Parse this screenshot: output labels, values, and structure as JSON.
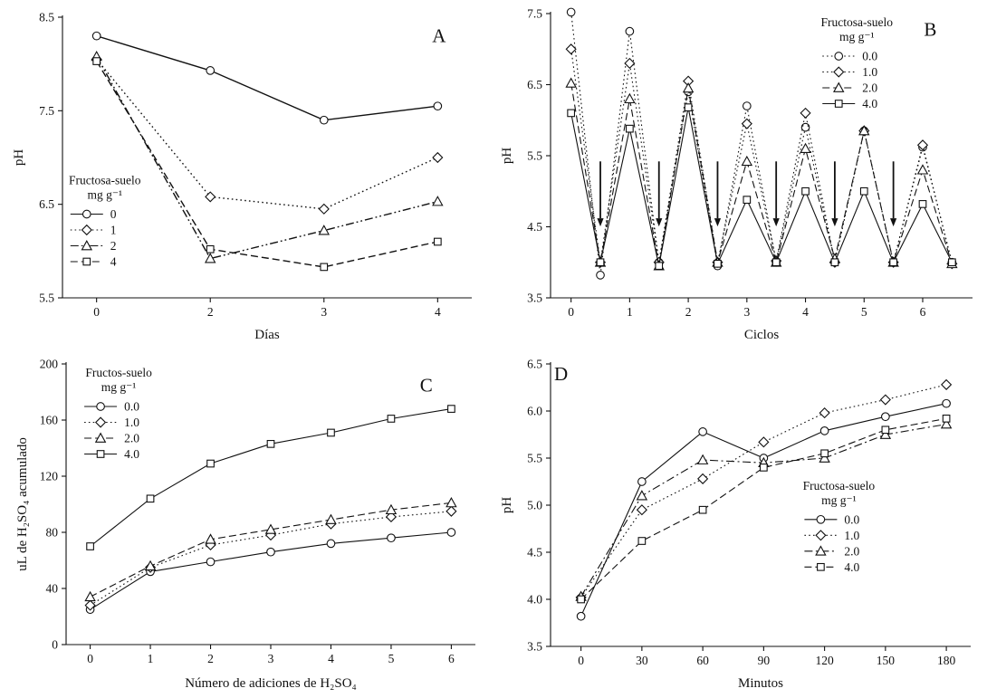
{
  "figure": {
    "background": "#ffffff",
    "description": "Four-panel scientific line figure (A, B, C, D) showing soil pH dynamics and accumulated H2SO4 under fructose-soil treatments"
  },
  "chart_data": [
    {
      "id": "A",
      "type": "line",
      "letter": "A",
      "xlabel": "Días",
      "ylabel": "pH",
      "xlim": [
        -0.3,
        3.3
      ],
      "ylim": [
        5.5,
        8.5
      ],
      "x_ticks": [
        0,
        1,
        2,
        3
      ],
      "x_tick_labels": [
        "0",
        "2",
        "3",
        "4"
      ],
      "y_ticks": [
        5.5,
        6.5,
        7.5,
        8.5
      ],
      "y_tick_labels": [
        "5.5",
        "6.5",
        "7.5",
        "8.5"
      ],
      "x": [
        0,
        1,
        2,
        3
      ],
      "legend": {
        "title": "Fructosa-suelo",
        "subtitle": "mg g⁻¹",
        "pos": [
          0.015,
          0.55
        ]
      },
      "letter_pos": [
        0.92,
        0.03
      ],
      "series": [
        {
          "name": "0",
          "marker": "circle",
          "dash": "solid",
          "y": [
            8.3,
            7.93,
            7.4,
            7.55
          ]
        },
        {
          "name": "1",
          "marker": "diamond",
          "dash": "dotted",
          "y": [
            8.05,
            6.58,
            6.45,
            7.0
          ]
        },
        {
          "name": "2",
          "marker": "triangle",
          "dash": "dashdotdot",
          "y": [
            8.08,
            5.92,
            6.22,
            6.53
          ]
        },
        {
          "name": "4",
          "marker": "square",
          "dash": "dashed",
          "y": [
            8.03,
            6.02,
            5.83,
            6.1
          ]
        }
      ]
    },
    {
      "id": "B",
      "type": "line",
      "letter": "B",
      "xlabel": "Ciclos",
      "ylabel": "pH",
      "xlim": [
        -0.35,
        6.85
      ],
      "ylim": [
        3.5,
        7.5
      ],
      "x_ticks": [
        0,
        1,
        2,
        3,
        4,
        5,
        6
      ],
      "x_tick_labels": [
        "0",
        "1",
        "2",
        "3",
        "4",
        "5",
        "6"
      ],
      "y_ticks": [
        3.5,
        4.5,
        5.5,
        6.5,
        7.5
      ],
      "y_tick_labels": [
        "3.5",
        "4.5",
        "5.5",
        "6.5",
        "7.5"
      ],
      "x": [
        0,
        0.5,
        1,
        1.5,
        2,
        2.5,
        3,
        3.5,
        4,
        4.5,
        5,
        5.5,
        6,
        6.5
      ],
      "legend": {
        "title": "Fructosa-suelo",
        "subtitle": "mg g⁻¹",
        "pos": [
          0.64,
          0.0
        ]
      },
      "letter_pos": [
        0.9,
        0.02
      ],
      "arrows": {
        "x": [
          0.5,
          1.5,
          2.5,
          3.5,
          4.5,
          5.5
        ],
        "y_from": 5.42,
        "y_to": 4.62
      },
      "series": [
        {
          "name": "0.0",
          "marker": "circle",
          "dash": "dotted",
          "y": [
            7.52,
            3.82,
            7.25,
            4.0,
            6.4,
            3.95,
            6.2,
            4.0,
            5.9,
            4.0,
            5.85,
            4.0,
            5.62,
            4.0
          ]
        },
        {
          "name": "1.0",
          "marker": "diamond",
          "dash": "dotted",
          "y": [
            7.0,
            4.0,
            6.8,
            4.0,
            6.55,
            4.0,
            5.95,
            4.02,
            6.1,
            4.0,
            5.85,
            4.0,
            5.65,
            3.98
          ]
        },
        {
          "name": "2.0",
          "marker": "triangle",
          "dash": "dashed",
          "y": [
            6.52,
            4.0,
            6.3,
            3.95,
            6.45,
            4.0,
            5.42,
            4.0,
            5.6,
            4.05,
            5.85,
            4.0,
            5.3,
            3.98
          ]
        },
        {
          "name": "4.0",
          "marker": "square",
          "dash": "solid",
          "y": [
            6.1,
            4.0,
            5.88,
            3.95,
            6.18,
            3.98,
            4.88,
            4.0,
            5.0,
            4.0,
            5.0,
            4.0,
            4.82,
            4.0
          ]
        }
      ]
    },
    {
      "id": "C",
      "type": "line",
      "letter": "C",
      "xlabel": "Número de adiciones de H₂SO₄",
      "ylabel": "uL de H₂SO₄ acumulado",
      "xlim": [
        -0.4,
        6.4
      ],
      "ylim": [
        0,
        200
      ],
      "x_ticks": [
        0,
        1,
        2,
        3,
        4,
        5,
        6
      ],
      "x_tick_labels": [
        "0",
        "1",
        "2",
        "3",
        "4",
        "5",
        "6"
      ],
      "y_ticks": [
        0,
        40,
        80,
        120,
        160,
        200
      ],
      "y_tick_labels": [
        "0",
        "40",
        "80",
        "120",
        "160",
        "200"
      ],
      "x": [
        0,
        1,
        2,
        3,
        4,
        5,
        6
      ],
      "legend": {
        "title": "Fructos-suelo",
        "subtitle": "mg g⁻¹",
        "pos": [
          0.04,
          0.0
        ]
      },
      "letter_pos": [
        0.88,
        0.04
      ],
      "series": [
        {
          "name": "0.0",
          "marker": "circle",
          "dash": "solid",
          "y": [
            25,
            52,
            59,
            66,
            72,
            76,
            80
          ]
        },
        {
          "name": "1.0",
          "marker": "diamond",
          "dash": "dotted",
          "y": [
            28,
            55,
            71,
            78,
            86,
            91,
            95
          ]
        },
        {
          "name": "2.0",
          "marker": "triangle",
          "dash": "dashed",
          "y": [
            34,
            56,
            75,
            82,
            89,
            96,
            101
          ]
        },
        {
          "name": "4.0",
          "marker": "square",
          "dash": "solid",
          "y": [
            70,
            104,
            129,
            143,
            151,
            161,
            168
          ]
        }
      ]
    },
    {
      "id": "D",
      "type": "line",
      "letter": "D",
      "xlabel": "Minutos",
      "ylabel": "pH",
      "xlim": [
        -15,
        192
      ],
      "ylim": [
        3.5,
        6.5
      ],
      "x_ticks": [
        0,
        30,
        60,
        90,
        120,
        150,
        180
      ],
      "x_tick_labels": [
        "0",
        "30",
        "60",
        "90",
        "120",
        "150",
        "180"
      ],
      "y_ticks": [
        3.5,
        4.0,
        4.5,
        5.0,
        5.5,
        6.0,
        6.5
      ],
      "y_tick_labels": [
        "3.5",
        "4.0",
        "4.5",
        "5.0",
        "5.5",
        "6.0",
        "6.5"
      ],
      "x": [
        0,
        30,
        60,
        90,
        120,
        150,
        180
      ],
      "legend": {
        "title": "Fructosa-suelo",
        "subtitle": "mg g⁻¹",
        "pos": [
          0.6,
          0.4
        ]
      },
      "letter_pos": [
        0.025,
        0.0
      ],
      "series": [
        {
          "name": "0.0",
          "marker": "circle",
          "dash": "solid",
          "y": [
            3.82,
            5.25,
            5.78,
            5.5,
            5.79,
            5.94,
            6.08
          ]
        },
        {
          "name": "1.0",
          "marker": "diamond",
          "dash": "dotted",
          "y": [
            4.02,
            4.95,
            5.28,
            5.67,
            5.98,
            6.12,
            6.28
          ]
        },
        {
          "name": "2.0",
          "marker": "triangle",
          "dash": "dashdot",
          "y": [
            4.03,
            5.1,
            5.48,
            5.45,
            5.5,
            5.75,
            5.86
          ]
        },
        {
          "name": "4.0",
          "marker": "square",
          "dash": "dashed",
          "y": [
            4.0,
            4.62,
            4.95,
            5.4,
            5.55,
            5.8,
            5.92
          ]
        }
      ]
    }
  ]
}
